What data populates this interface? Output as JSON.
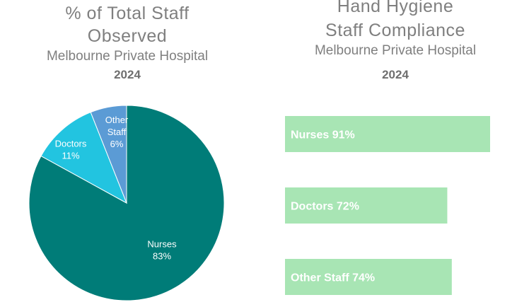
{
  "left": {
    "title_line1": "% of Total Staff",
    "title_line2": "Observed",
    "subtitle": "Melbourne Private Hospital",
    "year": "2024"
  },
  "right": {
    "title_line1": "Hand Hygiene",
    "title_line2": "Staff Compliance",
    "subtitle": "Melbourne Private Hospital",
    "year": "2024"
  },
  "chart_data": [
    {
      "type": "pie",
      "title": "% of Total Staff Observed",
      "subtitle": "Melbourne Private Hospital 2024",
      "slices": [
        {
          "label": "Nurses",
          "value": 83,
          "display": "83%",
          "color": "#007c78"
        },
        {
          "label": "Doctors",
          "value": 11,
          "display": "11%",
          "color": "#22c4e0"
        },
        {
          "label": "Other Staff",
          "value": 6,
          "display": "6%",
          "color": "#5b9bd5"
        }
      ]
    },
    {
      "type": "bar",
      "orientation": "horizontal",
      "title": "Hand Hygiene Staff Compliance",
      "subtitle": "Melbourne Private Hospital 2024",
      "categories": [
        "Nurses",
        "Doctors",
        "Other Staff"
      ],
      "values": [
        91,
        72,
        74
      ],
      "labels": [
        "Nurses 91%",
        "Doctors 72%",
        "Other Staff 74%"
      ],
      "color": "#a8e5b4"
    }
  ]
}
